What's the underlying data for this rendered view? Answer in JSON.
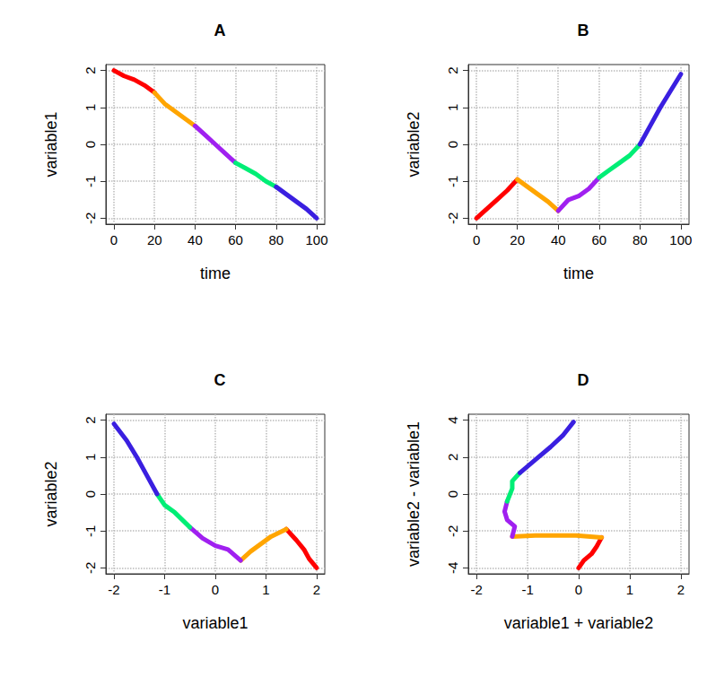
{
  "chart_data": [
    {
      "type": "line",
      "title": "A",
      "x_label": "time",
      "y_label": "variable1",
      "xlim": [
        -4,
        104
      ],
      "xticks": [
        0,
        20,
        40,
        60,
        80,
        100
      ],
      "ylim": [
        -2.16,
        2.16
      ],
      "yticks": [
        -2,
        -1,
        0,
        1,
        2
      ],
      "grid": true,
      "series": [
        {
          "color": "#FF0000",
          "x": [
            0,
            5,
            10,
            15,
            20
          ],
          "values": [
            2.0,
            1.85,
            1.75,
            1.6,
            1.4
          ]
        },
        {
          "color": "#FFA500",
          "x": [
            20,
            25,
            30,
            35,
            40
          ],
          "values": [
            1.4,
            1.1,
            0.9,
            0.7,
            0.5
          ]
        },
        {
          "color": "#A020F0",
          "x": [
            40,
            45,
            50,
            55,
            60
          ],
          "values": [
            0.5,
            0.25,
            0.0,
            -0.25,
            -0.5
          ]
        },
        {
          "color": "#00EE76",
          "x": [
            60,
            65,
            70,
            75,
            80
          ],
          "values": [
            -0.5,
            -0.65,
            -0.8,
            -1.0,
            -1.15
          ]
        },
        {
          "color": "#3A1FE0",
          "x": [
            80,
            85,
            90,
            95,
            100
          ],
          "values": [
            -1.15,
            -1.35,
            -1.55,
            -1.75,
            -2.0
          ]
        }
      ]
    },
    {
      "type": "line",
      "title": "B",
      "x_label": "time",
      "y_label": "variable2",
      "xlim": [
        -4,
        104
      ],
      "xticks": [
        0,
        20,
        40,
        60,
        80,
        100
      ],
      "ylim": [
        -2.16,
        2.16
      ],
      "yticks": [
        -2,
        -1,
        0,
        1,
        2
      ],
      "grid": true,
      "series": [
        {
          "color": "#FF0000",
          "x": [
            0,
            5,
            10,
            15,
            20
          ],
          "values": [
            -2.0,
            -1.75,
            -1.5,
            -1.25,
            -0.95
          ]
        },
        {
          "color": "#FFA500",
          "x": [
            20,
            25,
            30,
            35,
            40
          ],
          "values": [
            -0.95,
            -1.15,
            -1.35,
            -1.55,
            -1.8
          ]
        },
        {
          "color": "#A020F0",
          "x": [
            40,
            45,
            50,
            55,
            60
          ],
          "values": [
            -1.8,
            -1.5,
            -1.4,
            -1.2,
            -0.9
          ]
        },
        {
          "color": "#00EE76",
          "x": [
            60,
            65,
            70,
            75,
            80
          ],
          "values": [
            -0.9,
            -0.7,
            -0.5,
            -0.3,
            0.0
          ]
        },
        {
          "color": "#3A1FE0",
          "x": [
            80,
            85,
            90,
            95,
            100
          ],
          "values": [
            0.0,
            0.5,
            1.0,
            1.45,
            1.9
          ]
        }
      ]
    },
    {
      "type": "line",
      "title": "C",
      "x_label": "variable1",
      "y_label": "variable2",
      "xlim": [
        -2.16,
        2.16
      ],
      "xticks": [
        -2,
        -1,
        0,
        1,
        2
      ],
      "ylim": [
        -2.16,
        2.16
      ],
      "yticks": [
        -2,
        -1,
        0,
        1,
        2
      ],
      "grid": true,
      "series": [
        {
          "color": "#FF0000",
          "x": [
            2.0,
            1.85,
            1.75,
            1.6,
            1.4
          ],
          "values": [
            -2.0,
            -1.75,
            -1.5,
            -1.25,
            -0.95
          ]
        },
        {
          "color": "#FFA500",
          "x": [
            1.4,
            1.1,
            0.9,
            0.7,
            0.5
          ],
          "values": [
            -0.95,
            -1.15,
            -1.35,
            -1.55,
            -1.8
          ]
        },
        {
          "color": "#A020F0",
          "x": [
            0.5,
            0.25,
            0.0,
            -0.25,
            -0.5
          ],
          "values": [
            -1.8,
            -1.5,
            -1.4,
            -1.2,
            -0.9
          ]
        },
        {
          "color": "#00EE76",
          "x": [
            -0.5,
            -0.65,
            -0.8,
            -1.0,
            -1.15
          ],
          "values": [
            -0.9,
            -0.7,
            -0.5,
            -0.3,
            0.0
          ]
        },
        {
          "color": "#3A1FE0",
          "x": [
            -1.15,
            -1.35,
            -1.55,
            -1.75,
            -2.0
          ],
          "values": [
            0.0,
            0.5,
            1.0,
            1.45,
            1.9
          ]
        }
      ]
    },
    {
      "type": "line",
      "title": "D",
      "x_label": "variable1 + variable2",
      "y_label": "variable2 - variable1",
      "xlim": [
        -2.16,
        2.16
      ],
      "xticks": [
        -2,
        -1,
        0,
        1,
        2
      ],
      "ylim": [
        -4.32,
        4.32
      ],
      "yticks": [
        -4,
        -2,
        0,
        2,
        4
      ],
      "grid": true,
      "series": [
        {
          "color": "#FF0000",
          "x": [
            0,
            0.1,
            0.25,
            0.35,
            0.45
          ],
          "values": [
            -4,
            -3.6,
            -3.25,
            -2.85,
            -2.35
          ]
        },
        {
          "color": "#FFA500",
          "x": [
            0.45,
            -0.05,
            -0.45,
            -0.85,
            -1.3
          ],
          "values": [
            -2.35,
            -2.25,
            -2.25,
            -2.25,
            -2.3
          ]
        },
        {
          "color": "#A020F0",
          "x": [
            -1.3,
            -1.25,
            -1.4,
            -1.45,
            -1.4
          ],
          "values": [
            -2.3,
            -1.75,
            -1.4,
            -0.95,
            -0.4
          ]
        },
        {
          "color": "#00EE76",
          "x": [
            -1.4,
            -1.35,
            -1.3,
            -1.3,
            -1.15
          ],
          "values": [
            -0.4,
            -0.05,
            0.3,
            0.7,
            1.15
          ]
        },
        {
          "color": "#3A1FE0",
          "x": [
            -1.15,
            -0.85,
            -0.55,
            -0.3,
            -0.1
          ],
          "values": [
            1.15,
            1.85,
            2.55,
            3.2,
            3.9
          ]
        }
      ]
    }
  ]
}
